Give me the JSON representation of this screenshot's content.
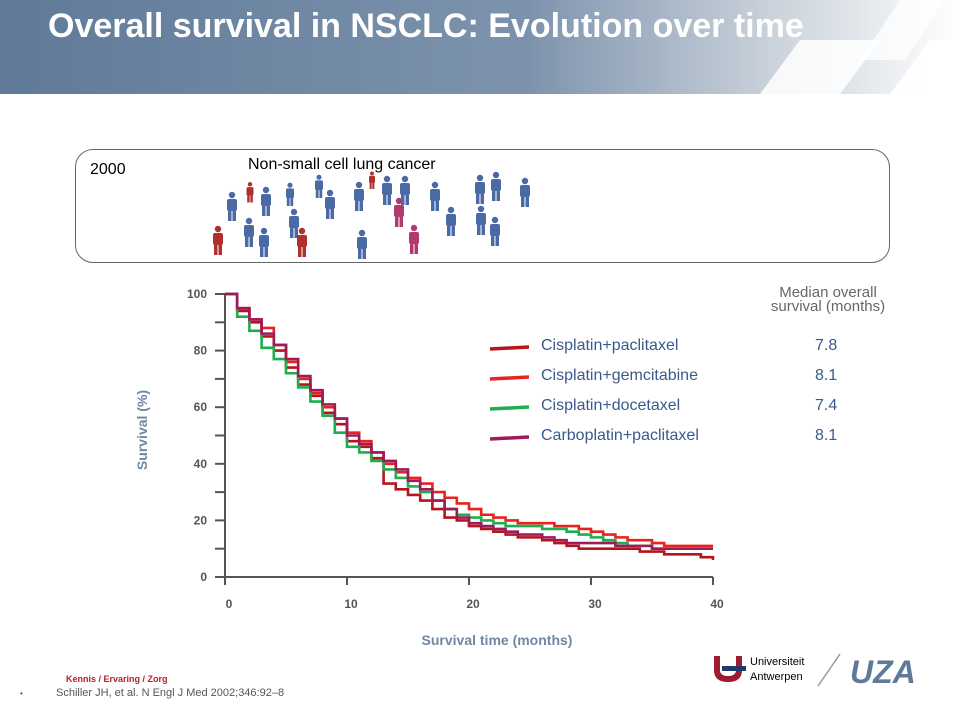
{
  "header": {
    "title": "Overall survival in NSCLC: Evolution over time"
  },
  "panel": {
    "year": "2000",
    "title": "Non-small cell lung cancer"
  },
  "colors": {
    "header_bg": "#6f87a3",
    "blue_person": "#4a6aa5",
    "red_person": "#b03030",
    "pink_person": "#b03a6e"
  },
  "chart_data": {
    "type": "line",
    "title": "",
    "xlabel": "Survival time (months)",
    "ylabel": "Survival (%)",
    "xlim": [
      0,
      40
    ],
    "ylim": [
      0,
      100
    ],
    "xticks": [
      "0",
      "10",
      "20",
      "30",
      "40"
    ],
    "yticks": [
      "0",
      "20",
      "40",
      "60",
      "80",
      "100"
    ],
    "legend_header": "Median overall survival (months)",
    "series": [
      {
        "name": "Cisplatin+paclitaxel",
        "median": "7.8",
        "color": "#b5141a",
        "x": [
          0,
          1,
          2,
          3,
          4,
          5,
          6,
          7,
          8,
          9,
          10,
          11,
          12,
          13,
          14,
          15,
          16,
          17,
          18,
          19,
          20,
          21,
          22,
          23,
          24,
          25,
          26,
          27,
          28,
          29,
          30,
          31,
          32,
          33,
          34,
          35,
          36,
          37,
          38,
          39,
          40
        ],
        "y": [
          100,
          94,
          90,
          85,
          80,
          74,
          68,
          64,
          58,
          54,
          48,
          46,
          42,
          33,
          31,
          29,
          27,
          24,
          21,
          20,
          18,
          17,
          16,
          15,
          14,
          14,
          13,
          12,
          11,
          10,
          10,
          10,
          10,
          10,
          9,
          9,
          8,
          8,
          8,
          7,
          6
        ]
      },
      {
        "name": "Cisplatin+gemcitabine",
        "median": "8.1",
        "color": "#e8231d",
        "x": [
          0,
          1,
          2,
          3,
          4,
          5,
          6,
          7,
          8,
          9,
          10,
          11,
          12,
          13,
          14,
          15,
          16,
          17,
          18,
          19,
          20,
          21,
          22,
          23,
          24,
          25,
          26,
          27,
          28,
          29,
          30,
          31,
          32,
          33,
          34,
          35,
          36,
          37,
          38,
          39,
          40
        ],
        "y": [
          100,
          95,
          91,
          88,
          82,
          76,
          70,
          65,
          60,
          56,
          51,
          48,
          44,
          40,
          37,
          35,
          33,
          30,
          28,
          26,
          24,
          22,
          21,
          20,
          19,
          19,
          19,
          18,
          18,
          17,
          16,
          15,
          14,
          13,
          13,
          12,
          11,
          11,
          11,
          11,
          11
        ]
      },
      {
        "name": "Cisplatin+docetaxel",
        "median": "7.4",
        "color": "#1fae4f",
        "x": [
          0,
          1,
          2,
          3,
          4,
          5,
          6,
          7,
          8,
          9,
          10,
          11,
          12,
          13,
          14,
          15,
          16,
          17,
          18,
          19,
          20,
          21,
          22,
          23,
          24,
          25,
          26,
          27,
          28,
          29,
          30,
          31,
          32,
          33,
          34,
          35,
          36,
          37,
          38,
          39,
          40
        ],
        "y": [
          100,
          92,
          87,
          81,
          77,
          72,
          67,
          62,
          57,
          51,
          46,
          44,
          41,
          38,
          35,
          32,
          30,
          27,
          24,
          22,
          21,
          20,
          19,
          18,
          18,
          18,
          17,
          17,
          16,
          15,
          14,
          13,
          12,
          11,
          11,
          10,
          10,
          10,
          10,
          10,
          10
        ]
      },
      {
        "name": "Carboplatin+paclitaxel",
        "median": "8.1",
        "color": "#9e1b5a",
        "x": [
          0,
          1,
          2,
          3,
          4,
          5,
          6,
          7,
          8,
          9,
          10,
          11,
          12,
          13,
          14,
          15,
          16,
          17,
          18,
          19,
          20,
          21,
          22,
          23,
          24,
          25,
          26,
          27,
          28,
          29,
          30,
          31,
          32,
          33,
          34,
          35,
          36,
          37,
          38,
          39,
          40
        ],
        "y": [
          100,
          95,
          91,
          86,
          82,
          77,
          71,
          66,
          61,
          56,
          50,
          47,
          44,
          41,
          38,
          34,
          31,
          27,
          24,
          21,
          19,
          18,
          17,
          16,
          15,
          15,
          14,
          13,
          12,
          12,
          12,
          12,
          11,
          11,
          11,
          10,
          10,
          10,
          10,
          10,
          10
        ]
      }
    ]
  },
  "footer": {
    "brand": "Kennis / Ervaring / Zorg",
    "bullet": "•",
    "citation": "Schiller JH, et al. N Engl J Med 2002;346:92–8",
    "university_line1": "Universiteit",
    "university_line2": "Antwerpen",
    "uza": "UZA"
  }
}
